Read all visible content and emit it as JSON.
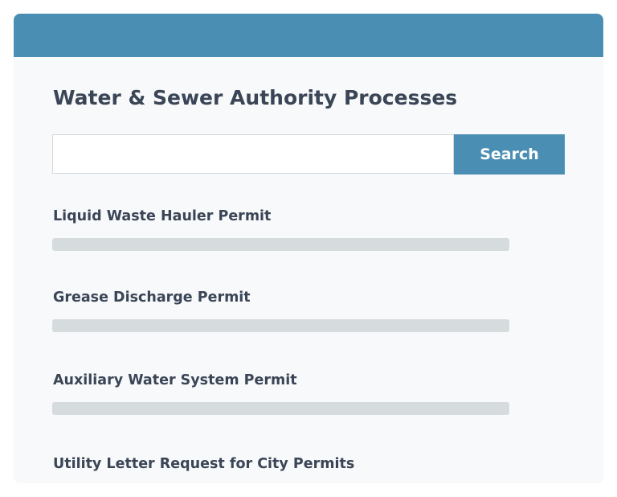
{
  "header": {
    "title": "Water & Sewer Authority Processes"
  },
  "search": {
    "value": "",
    "button_label": "Search"
  },
  "items": [
    {
      "label": "Liquid Waste Hauler Permit"
    },
    {
      "label": "Grease Discharge Permit"
    },
    {
      "label": "Auxiliary Water System Permit"
    },
    {
      "label": "Utility Letter Request for City Permits"
    }
  ],
  "colors": {
    "accent": "#4a8fb3"
  }
}
